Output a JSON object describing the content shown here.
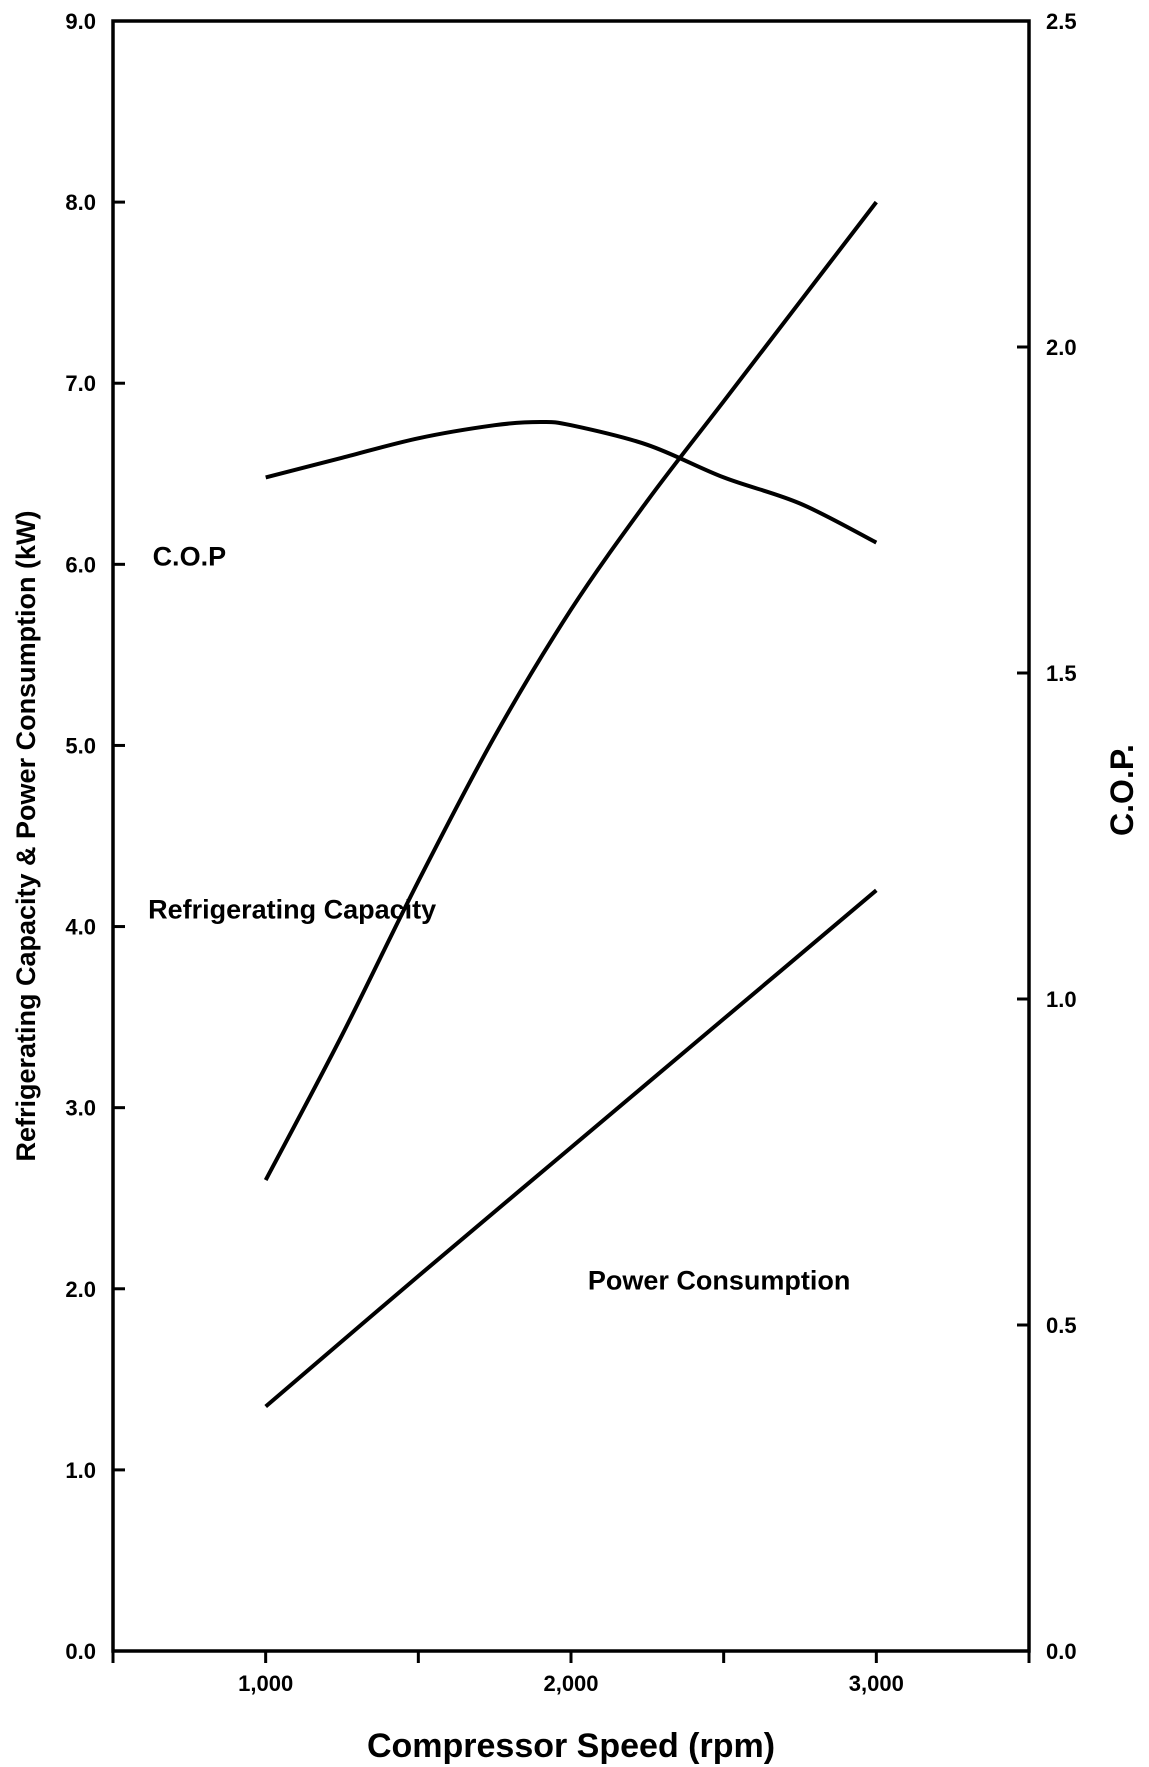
{
  "chart_data": {
    "type": "line",
    "title": "",
    "xlabel": "Compressor Speed (rpm)",
    "ylabel_left": "Refrigerating Capacity & Power Consumption (kW)",
    "ylabel_right": "C.O.P.",
    "xlim": [
      500,
      3500
    ],
    "ylim_left": [
      0,
      9
    ],
    "ylim_right": [
      0,
      2.5
    ],
    "x_ticks": [
      500,
      1000,
      1500,
      2000,
      2500,
      3000,
      3500
    ],
    "x_tick_labels": [
      {
        "value": 1000,
        "label": "1,000"
      },
      {
        "value": 2000,
        "label": "2,000"
      },
      {
        "value": 3000,
        "label": "3,000"
      }
    ],
    "y_left_tick_labels": [
      {
        "value": 0,
        "label": "0.0"
      },
      {
        "value": 1,
        "label": "1.0"
      },
      {
        "value": 2,
        "label": "2.0"
      },
      {
        "value": 3,
        "label": "3.0"
      },
      {
        "value": 4,
        "label": "4.0"
      },
      {
        "value": 5,
        "label": "5.0"
      },
      {
        "value": 6,
        "label": "6.0"
      },
      {
        "value": 7,
        "label": "7.0"
      },
      {
        "value": 8,
        "label": "8.0"
      },
      {
        "value": 9,
        "label": "9.0"
      }
    ],
    "y_right_tick_labels": [
      {
        "value": 0,
        "label": "0.0"
      },
      {
        "value": 0.5,
        "label": "0.5"
      },
      {
        "value": 1.0,
        "label": "1.0"
      },
      {
        "value": 1.5,
        "label": "1.5"
      },
      {
        "value": 2.0,
        "label": "2.0"
      },
      {
        "value": 2.5,
        "label": "2.5"
      }
    ],
    "grid": false,
    "series": [
      {
        "name": "C.O.P",
        "axis": "right",
        "x": [
          1000,
          1250,
          1500,
          1750,
          1900,
          2000,
          2250,
          2500,
          2750,
          3000
        ],
        "y": [
          1.8,
          1.83,
          1.86,
          1.88,
          1.885,
          1.88,
          1.85,
          1.8,
          1.76,
          1.7
        ]
      },
      {
        "name": "Refrigerating Capacity",
        "axis": "left",
        "x": [
          1000,
          1250,
          1500,
          1750,
          2000,
          2250,
          2500,
          2750,
          3000
        ],
        "y": [
          2.6,
          3.4,
          4.25,
          5.05,
          5.75,
          6.35,
          6.9,
          7.45,
          8.0
        ]
      },
      {
        "name": "Power Consumption",
        "axis": "left",
        "x": [
          1000,
          1500,
          2000,
          2500,
          3000
        ],
        "y": [
          1.35,
          2.07,
          2.78,
          3.49,
          4.2
        ]
      }
    ],
    "annotations": [
      {
        "text": "C.O.P",
        "x": 750,
        "y": 6.05
      },
      {
        "text": "Refrigerating Capacity",
        "x": 615,
        "y": 4.1
      },
      {
        "text": "Power Consumption",
        "x": 2915,
        "y": 2.05
      }
    ]
  }
}
